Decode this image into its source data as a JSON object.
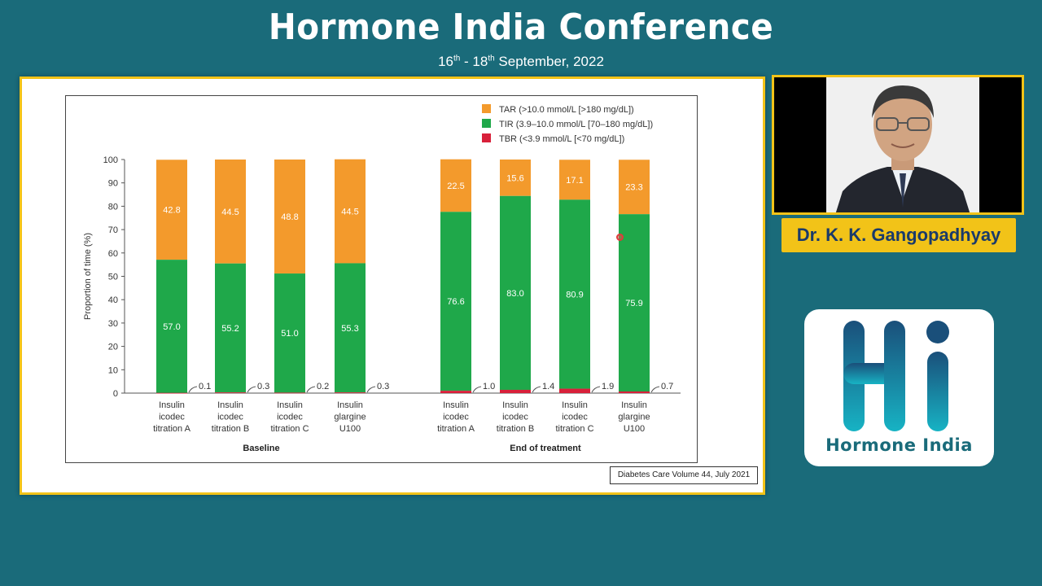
{
  "header": {
    "title": "Hormone India Conference",
    "date_d1": "16",
    "date_sup1": "th",
    "date_mid": " - 18",
    "date_sup2": "th",
    "date_rest": " September, 2022"
  },
  "citation": "Diabetes Care Volume 44, July 2021",
  "speaker": {
    "name": "Dr. K. K. Gangopadhyay"
  },
  "logo": {
    "text": "Hormone India"
  },
  "colors": {
    "tar": "#f39a2c",
    "tir": "#1fa84a",
    "tbr": "#d8203a",
    "background": "#1a6b7a",
    "accent": "#f2c318"
  },
  "chart_data": {
    "type": "bar",
    "stacked": true,
    "ylabel": "Proportion of time (%)",
    "ylim": [
      0,
      100
    ],
    "yticks": [
      0,
      10,
      20,
      30,
      40,
      50,
      60,
      70,
      80,
      90,
      100
    ],
    "legend_position": "top-right",
    "groups": [
      {
        "name": "Baseline",
        "categories": [
          [
            "Insulin",
            "icodec",
            "titration A"
          ],
          [
            "Insulin",
            "icodec",
            "titration B"
          ],
          [
            "Insulin",
            "icodec",
            "titration C"
          ],
          [
            "Insulin",
            "glargine",
            "U100"
          ]
        ]
      },
      {
        "name": "End of treatment",
        "categories": [
          [
            "Insulin",
            "icodec",
            "titration A"
          ],
          [
            "Insulin",
            "icodec",
            "titration B"
          ],
          [
            "Insulin",
            "icodec",
            "titration C"
          ],
          [
            "Insulin",
            "glargine",
            "U100"
          ]
        ]
      }
    ],
    "series": [
      {
        "name": "TBR (<3.9 mmol/L [<70 mg/dL])",
        "key": "tbr",
        "values": [
          0.1,
          0.3,
          0.2,
          0.3,
          1.0,
          1.4,
          1.9,
          0.7
        ],
        "labels": [
          "0.1",
          "0.3",
          "0.2",
          "0.3",
          "1.0",
          "1.4",
          "1.9",
          "0.7"
        ]
      },
      {
        "name": "TIR (3.9–10.0 mmol/L [70–180 mg/dL])",
        "key": "tir",
        "values": [
          57.0,
          55.2,
          51.0,
          55.3,
          76.6,
          83.0,
          80.9,
          75.9
        ],
        "labels": [
          "57.0",
          "55.2",
          "51.0",
          "55.3",
          "76.6",
          "83.0",
          "80.9",
          "75.9"
        ]
      },
      {
        "name": "TAR (>10.0 mmol/L [>180 mg/dL])",
        "key": "tar",
        "values": [
          42.8,
          44.5,
          48.8,
          44.5,
          22.5,
          15.6,
          17.1,
          23.3
        ],
        "labels": [
          "42.8",
          "44.5",
          "48.8",
          "44.5",
          "22.5",
          "15.6",
          "17.1",
          "23.3"
        ]
      }
    ]
  }
}
